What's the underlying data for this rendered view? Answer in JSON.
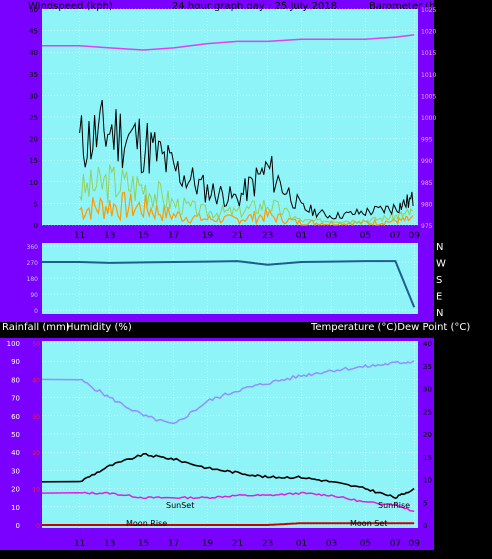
{
  "top_panel": {
    "title_left": "Windspeed (kph)",
    "title_center": "24 hour graph day : 25 July 2018",
    "title_right": "Barometer (hpa)",
    "left_ticks": [
      "0",
      "5",
      "10",
      "15",
      "20",
      "25",
      "30",
      "35",
      "40",
      "45",
      "50"
    ],
    "right_ticks": [
      "975",
      "980",
      "985",
      "990",
      "995",
      "1000",
      "1005",
      "1010",
      "1015",
      "1020",
      "1025"
    ],
    "x_ticks": [
      "11",
      "13",
      "15",
      "17",
      "19",
      "21",
      "23",
      "01",
      "03",
      "05",
      "07",
      "09"
    ]
  },
  "dir_panel": {
    "left_ticks": [
      "360",
      "270",
      "180",
      "90",
      "0"
    ],
    "right_labels": [
      "N",
      "W",
      "S",
      "E",
      "N"
    ]
  },
  "bottom_panel": {
    "title_left": "Rainfall (mm)",
    "title_humidity": "Humidity (%)",
    "title_right": "Temperature (°C)Dew Point (°C)",
    "left_ticks": [
      "0",
      "10",
      "20",
      "30",
      "40",
      "50",
      "60",
      "70",
      "80",
      "90",
      "100"
    ],
    "rain_ticks": [
      "0",
      "10",
      "20",
      "30",
      "40",
      "50"
    ],
    "right_ticks": [
      "0",
      "5",
      "10",
      "15",
      "20",
      "25",
      "30",
      "35",
      "40"
    ],
    "x_ticks": [
      "11",
      "13",
      "15",
      "17",
      "19",
      "21",
      "23",
      "01",
      "03",
      "05",
      "07",
      "09"
    ],
    "annotations": {
      "sunset": "SunSet",
      "sunrise": "SunRise",
      "moonrise": "Moon Rise",
      "moonset": "Moon Set"
    }
  },
  "colors": {
    "frame": "#7a00ff",
    "plot_bg": "#8ff4f8",
    "grid": "#ffffff",
    "barometer": "#e040f0",
    "gust": "#000000",
    "wind_avg": "#90d060",
    "wind_low": "#ff9900",
    "direction": "#1f5c8f",
    "humidity": "#9090ff",
    "temperature": "#000000",
    "dewpoint": "#e020e0",
    "rain": "#cc0000"
  },
  "chart_data": [
    {
      "type": "line",
      "title": "24 hour graph day : 25 July 2018",
      "xlabel": "",
      "ylabel": "Windspeed (kph)",
      "y2label": "Barometer (hpa)",
      "x": [
        "11",
        "13",
        "15",
        "17",
        "19",
        "21",
        "23",
        "01",
        "03",
        "05",
        "07",
        "09"
      ],
      "ylim": [
        0,
        50
      ],
      "y2lim": [
        975,
        1025
      ],
      "series": [
        {
          "name": "Barometer",
          "axis": "right",
          "values": [
            1016.5,
            1016,
            1015.5,
            1016,
            1017,
            1017.5,
            1017.5,
            1018,
            1018,
            1018,
            1018.5,
            1019
          ]
        },
        {
          "name": "Gust",
          "axis": "left",
          "values": [
            19,
            22,
            19,
            13,
            8,
            6,
            13,
            4,
            2,
            3,
            4,
            6
          ]
        },
        {
          "name": "Average",
          "axis": "left",
          "values": [
            8,
            10,
            9,
            5,
            3,
            3,
            5,
            1,
            1,
            1,
            2,
            3
          ]
        }
      ]
    },
    {
      "type": "line",
      "ylabel": "Wind direction",
      "ylim": [
        0,
        360
      ],
      "x": [
        "11",
        "13",
        "15",
        "17",
        "19",
        "21",
        "23",
        "01",
        "03",
        "05",
        "07",
        "09"
      ],
      "series": [
        {
          "name": "Direction",
          "values": [
            270,
            265,
            268,
            270,
            272,
            275,
            255,
            270,
            272,
            275,
            275,
            15
          ]
        }
      ]
    },
    {
      "type": "line",
      "ylabel": "Humidity (%)",
      "y2label": "Temperature (°C)Dew Point (°C)",
      "x": [
        "11",
        "13",
        "15",
        "17",
        "19",
        "21",
        "23",
        "01",
        "03",
        "05",
        "07",
        "09"
      ],
      "ylim": [
        0,
        100
      ],
      "y2lim": [
        0,
        40
      ],
      "series": [
        {
          "name": "Humidity",
          "axis": "left",
          "values": [
            80,
            70,
            60,
            55,
            68,
            74,
            78,
            82,
            85,
            87,
            89,
            90
          ]
        },
        {
          "name": "Temperature",
          "axis": "right",
          "values": [
            9.5,
            13,
            15.5,
            14.5,
            12.5,
            11.5,
            10.5,
            10.5,
            9.5,
            8,
            6,
            8
          ]
        },
        {
          "name": "Dew Point",
          "axis": "right",
          "values": [
            7,
            7,
            6,
            6,
            6,
            6.5,
            6.5,
            7,
            6.5,
            5,
            4.5,
            3
          ]
        },
        {
          "name": "Rainfall",
          "axis": "rain",
          "values": [
            0,
            0,
            0,
            0,
            0,
            0,
            0,
            0.5,
            0.5,
            0.5,
            0.5,
            0.5
          ]
        }
      ]
    }
  ]
}
